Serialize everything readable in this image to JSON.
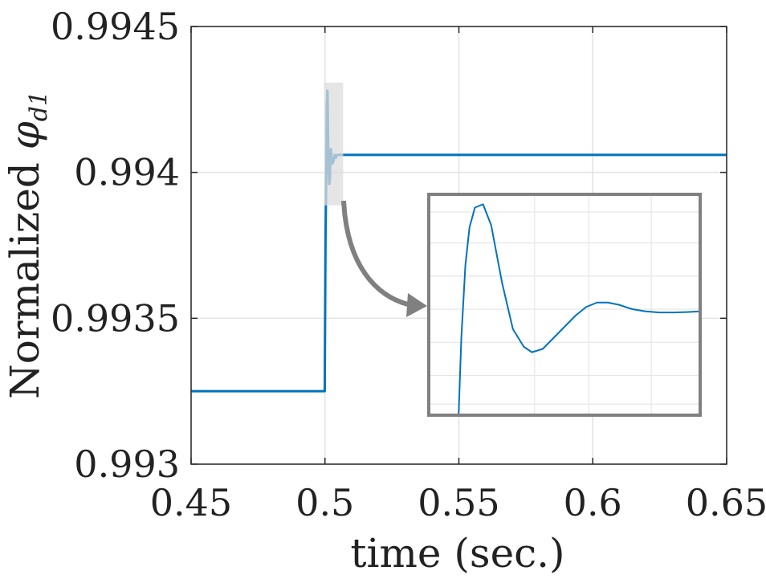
{
  "chart_data": {
    "type": "line",
    "xlabel": "time (sec.)",
    "ylabel": {
      "text": "Normalized ",
      "symbol": "φ",
      "subscript": "d1"
    },
    "xlim": [
      0.45,
      0.65
    ],
    "ylim": [
      0.993,
      0.9945
    ],
    "x_ticks": [
      "0.45",
      "0.5",
      "0.55",
      "0.6",
      "0.65"
    ],
    "y_ticks": [
      "0.993",
      "0.9935",
      "0.994",
      "0.9945"
    ],
    "grid": true,
    "line_color": "#0072BD",
    "series": [
      {
        "x": [
          0.45,
          0.4999,
          0.5002,
          0.5005,
          0.5007,
          0.5009,
          0.501,
          0.5012,
          0.5014,
          0.5016,
          0.5018,
          0.502,
          0.5022,
          0.5025,
          0.5028,
          0.5032,
          0.5036,
          0.504,
          0.5045,
          0.505,
          0.506,
          0.65
        ],
        "y": [
          0.99325,
          0.99325,
          0.99378,
          0.99402,
          0.99423,
          0.99428,
          0.99425,
          0.9941,
          0.994,
          0.99396,
          0.99397,
          0.99404,
          0.99408,
          0.99405,
          0.99403,
          0.99404,
          0.99406,
          0.99405,
          0.99406,
          0.99406,
          0.99406,
          0.99406
        ]
      }
    ],
    "inset": {
      "source_x": [
        0.4997,
        0.5068
      ],
      "source_y": [
        0.99392,
        0.99428
      ],
      "box_color": "#808080",
      "curve": {
        "t": [
          0.11,
          0.12,
          0.135,
          0.15,
          0.17,
          0.2,
          0.23,
          0.27,
          0.31,
          0.35,
          0.38,
          0.42,
          0.46,
          0.5,
          0.54,
          0.58,
          0.62,
          0.66,
          0.7,
          0.75,
          0.8,
          0.85,
          0.9,
          0.95,
          1.0
        ],
        "v": [
          0.0,
          0.35,
          0.68,
          0.85,
          0.94,
          0.955,
          0.86,
          0.6,
          0.39,
          0.31,
          0.285,
          0.3,
          0.35,
          0.4,
          0.45,
          0.49,
          0.51,
          0.51,
          0.5,
          0.48,
          0.47,
          0.465,
          0.465,
          0.467,
          0.47
        ]
      }
    }
  }
}
